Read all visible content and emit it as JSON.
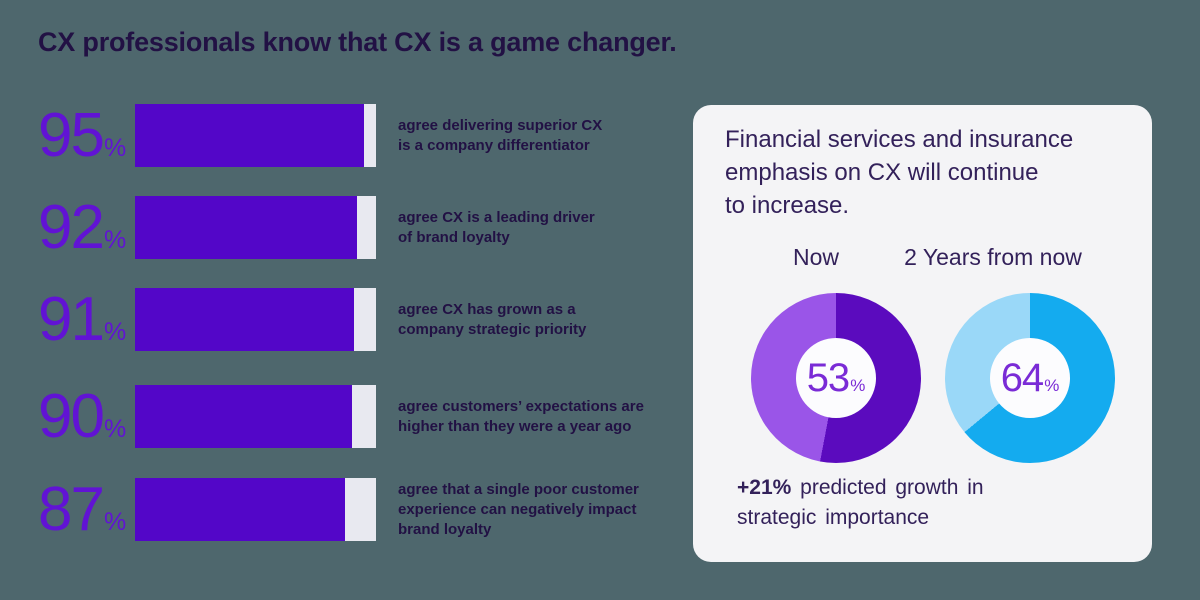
{
  "title": "CX professionals know that CX is a game changer.",
  "colors": {
    "background": "#4E676D",
    "bar_fill": "#5306C8",
    "bar_track": "#E8E9F0",
    "number_purple": "#6113D4",
    "text_dark": "#221144",
    "text_heading": "#33215A",
    "card_bg": "#F4F4F6",
    "donut_hole": "#FCFCFE",
    "donut_center_text": "#7A2BD6",
    "donut_now_main": "#5B0BBE",
    "donut_now_rest": "#9A55E8",
    "donut_future_main": "#14ABEF",
    "donut_future_rest": "#9AD8F8"
  },
  "chart_data": [
    {
      "type": "bar",
      "orientation": "horizontal",
      "title": "CX professionals know that CX is a game changer.",
      "unit": "%",
      "value_range": [
        0,
        100
      ],
      "values": [
        95,
        92,
        91,
        90,
        87
      ],
      "categories": [
        "agree delivering superior CX\nis a company differentiator",
        "agree CX is a leading driver\nof brand loyalty",
        "agree CX has grown as a\ncompany strategic priority",
        "agree customers’ expectations are\nhigher than they were a year ago",
        "agree that a single poor customer\nexperience can negatively impact\nbrand loyalty"
      ]
    },
    {
      "type": "pie",
      "subtype": "donut",
      "title": "Financial services and insurance emphasis on CX will continue to increase.",
      "unit": "%",
      "series": [
        {
          "name": "Now",
          "value": 53,
          "color_main": "#5B0BBE",
          "color_rest": "#9A55E8"
        },
        {
          "name": "2 Years from now",
          "value": 64,
          "color_main": "#14ABEF",
          "color_rest": "#9AD8F8"
        }
      ],
      "annotation": "+21% predicted growth in strategic importance"
    }
  ],
  "card": {
    "heading": "Financial services and insurance\nemphasis on CX will continue\nto increase.",
    "note_highlight": "+21%",
    "note_text": "predicted growth in\nstrategic importance"
  }
}
